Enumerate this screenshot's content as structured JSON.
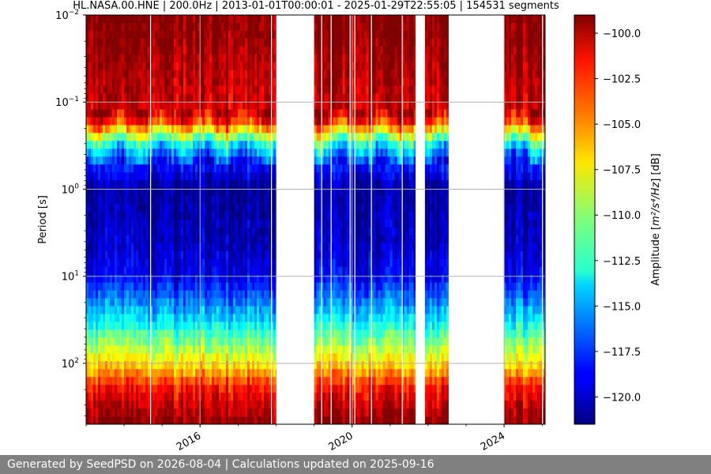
{
  "footer": {
    "text": "Generated by SeedPSD on 2026-08-04 | Calculations updated on 2025-09-16"
  },
  "colors": {
    "footer_bg": "#808080",
    "grid": "#b0b0b0",
    "no_data": "#ffffff"
  },
  "chart_data": {
    "type": "heatmap",
    "title": "HL.NASA.00.HNE | 200.0Hz | 2013-01-01T00:00:01 - 2025-01-29T22:55:05 | 154531 segments",
    "xlabel": "",
    "ylabel": "Period [s]",
    "y_scale": "log",
    "y_inverted": true,
    "ylim_period_s": [
      0.01,
      500
    ],
    "y_ticks": [
      {
        "value": 0.01,
        "base": "10",
        "exp": "−2"
      },
      {
        "value": 0.1,
        "base": "10",
        "exp": "−1"
      },
      {
        "value": 1,
        "base": "10",
        "exp": "0"
      },
      {
        "value": 10,
        "base": "10",
        "exp": "1"
      },
      {
        "value": 100,
        "base": "10",
        "exp": "2"
      }
    ],
    "xlim": [
      "2013-01-01",
      "2025-01-29"
    ],
    "x_ticks": [
      {
        "label": "2016",
        "date": "2016-01-01"
      },
      {
        "label": "2020",
        "date": "2020-01-01"
      },
      {
        "label": "2024",
        "date": "2024-01-01"
      }
    ],
    "grid": true,
    "data_periods": [
      {
        "start": "2013-01-01",
        "end": "2017-12-31"
      },
      {
        "start": "2019-01-01",
        "end": "2021-08-31"
      },
      {
        "start": "2021-12-01",
        "end": "2022-07-15"
      },
      {
        "start": "2024-01-01",
        "end": "2025-01-29"
      }
    ],
    "typical_profile": [
      {
        "period_s": 0.01,
        "amplitude_db": -99
      },
      {
        "period_s": 0.15,
        "amplitude_db": -101
      },
      {
        "period_s": 0.3,
        "amplitude_db": -113
      },
      {
        "period_s": 0.5,
        "amplitude_db": -118
      },
      {
        "period_s": 1,
        "amplitude_db": -121
      },
      {
        "period_s": 5,
        "amplitude_db": -120
      },
      {
        "period_s": 10,
        "amplitude_db": -119
      },
      {
        "period_s": 30,
        "amplitude_db": -114
      },
      {
        "period_s": 100,
        "amplitude_db": -107
      },
      {
        "period_s": 200,
        "amplitude_db": -102
      },
      {
        "period_s": 500,
        "amplitude_db": -99
      }
    ],
    "colorbar": {
      "label_prefix": "Amplitude [",
      "label_math": "m²/s⁴/Hz",
      "label_suffix": "] [dB]",
      "colormap": "jet",
      "range_db": [
        -121.5,
        -99
      ],
      "ticks": [
        "−100.0",
        "−102.5",
        "−105.0",
        "−107.5",
        "−110.0",
        "−112.5",
        "−115.0",
        "−117.5",
        "−120.0"
      ]
    }
  }
}
